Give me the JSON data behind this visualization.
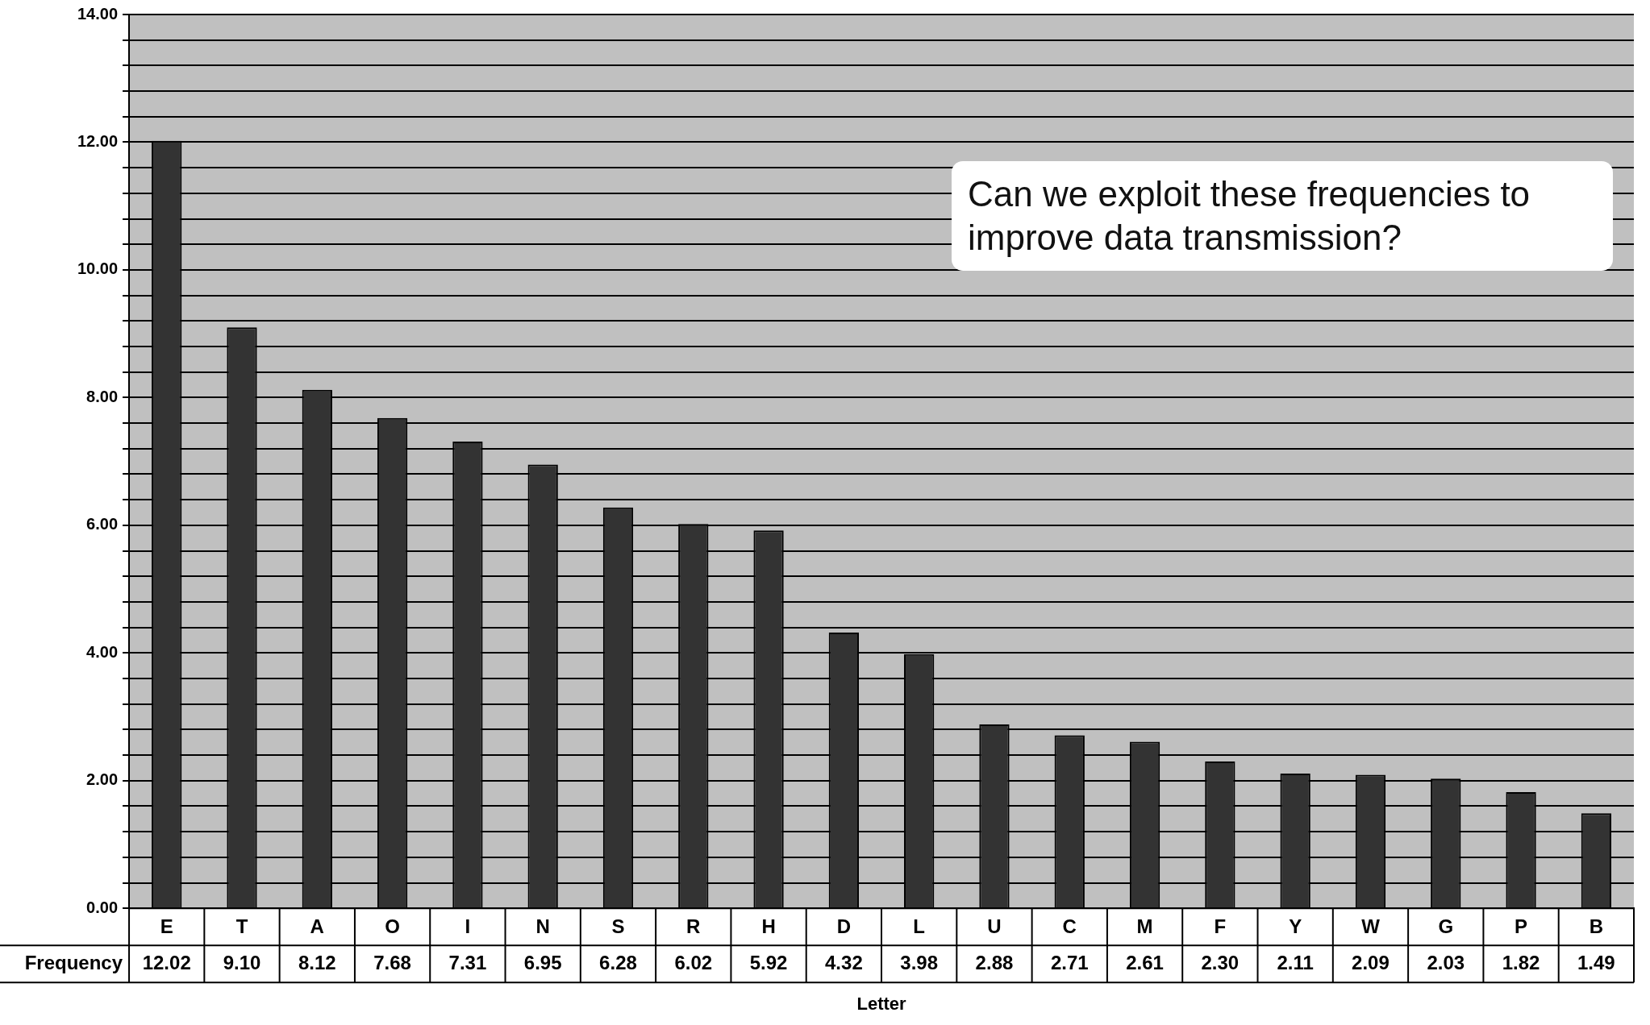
{
  "chart_data": {
    "type": "bar",
    "xlabel": "Letter",
    "categories": [
      "E",
      "T",
      "A",
      "O",
      "I",
      "N",
      "S",
      "R",
      "H",
      "D",
      "L",
      "U",
      "C",
      "M",
      "F",
      "Y",
      "W",
      "G",
      "P",
      "B"
    ],
    "series": [
      {
        "name": "Frequency",
        "color": "#333333",
        "values": [
          12.02,
          9.1,
          8.12,
          7.68,
          7.31,
          6.95,
          6.28,
          6.02,
          5.92,
          4.32,
          3.98,
          2.88,
          2.71,
          2.61,
          2.3,
          2.11,
          2.09,
          2.03,
          1.82,
          1.49
        ],
        "value_labels": [
          "12.02",
          "9.10",
          "8.12",
          "7.68",
          "7.31",
          "6.95",
          "6.28",
          "6.02",
          "5.92",
          "4.32",
          "3.98",
          "2.88",
          "2.71",
          "2.61",
          "2.30",
          "2.11",
          "2.09",
          "2.03",
          "1.82",
          "1.49"
        ]
      }
    ],
    "ylim": [
      0,
      14
    ],
    "yticks": [
      {
        "value": 0,
        "label": "0.00"
      },
      {
        "value": 0.4,
        "label": null
      },
      {
        "value": 0.8,
        "label": null
      },
      {
        "value": 1.2,
        "label": null
      },
      {
        "value": 1.6,
        "label": null
      },
      {
        "value": 2,
        "label": "2.00"
      },
      {
        "value": 2.4,
        "label": null
      },
      {
        "value": 2.8,
        "label": null
      },
      {
        "value": 3.2,
        "label": null
      },
      {
        "value": 3.6,
        "label": null
      },
      {
        "value": 4,
        "label": "4.00"
      },
      {
        "value": 4.4,
        "label": null
      },
      {
        "value": 4.8,
        "label": null
      },
      {
        "value": 5.2,
        "label": null
      },
      {
        "value": 5.6,
        "label": null
      },
      {
        "value": 6,
        "label": "6.00"
      },
      {
        "value": 6.4,
        "label": null
      },
      {
        "value": 6.8,
        "label": null
      },
      {
        "value": 7.2,
        "label": null
      },
      {
        "value": 7.6,
        "label": null
      },
      {
        "value": 8,
        "label": "8.00"
      },
      {
        "value": 8.4,
        "label": null
      },
      {
        "value": 8.8,
        "label": null
      },
      {
        "value": 9.2,
        "label": null
      },
      {
        "value": 9.6,
        "label": null
      },
      {
        "value": 10,
        "label": "10.00"
      },
      {
        "value": 10.4,
        "label": null
      },
      {
        "value": 10.8,
        "label": null
      },
      {
        "value": 11.2,
        "label": null
      },
      {
        "value": 11.6,
        "label": null
      },
      {
        "value": 12,
        "label": "12.00"
      },
      {
        "value": 12.4,
        "label": null
      },
      {
        "value": 12.8,
        "label": null
      },
      {
        "value": 13.2,
        "label": null
      },
      {
        "value": 13.6,
        "label": null
      },
      {
        "value": 14,
        "label": "14.00"
      }
    ],
    "grid": "y",
    "legend": false,
    "annotations": [
      "Can we exploit these frequencies to improve data transmission?"
    ]
  }
}
